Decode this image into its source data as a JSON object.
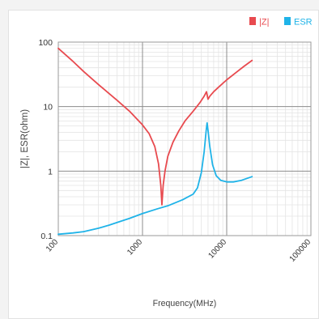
{
  "chart_data": {
    "type": "line",
    "x_scale": "log",
    "y_scale": "log",
    "xlabel": "Frequency(MHz)",
    "ylabel": "|Z|, ESR(ohm)",
    "xlim": [
      100,
      100000
    ],
    "ylim": [
      0.1,
      100
    ],
    "x_ticks": [
      "100",
      "1000",
      "10000",
      "100000"
    ],
    "y_ticks": [
      "0.1",
      "1",
      "10",
      "100"
    ],
    "grid": true,
    "legend_position": "top-right",
    "series": [
      {
        "name": "|Z|",
        "color": "#e84a4f",
        "points": [
          [
            100,
            80
          ],
          [
            150,
            50
          ],
          [
            200,
            35
          ],
          [
            300,
            22
          ],
          [
            400,
            16
          ],
          [
            500,
            12.5
          ],
          [
            700,
            8.5
          ],
          [
            1000,
            5.2
          ],
          [
            1200,
            3.8
          ],
          [
            1400,
            2.4
          ],
          [
            1550,
            1.3
          ],
          [
            1650,
            0.6
          ],
          [
            1700,
            0.3
          ],
          [
            1760,
            0.6
          ],
          [
            1850,
            1.0
          ],
          [
            2000,
            1.7
          ],
          [
            2300,
            2.8
          ],
          [
            2700,
            4.2
          ],
          [
            3200,
            6.0
          ],
          [
            4000,
            8.5
          ],
          [
            4800,
            11.5
          ],
          [
            5400,
            14.5
          ],
          [
            5750,
            17.0
          ],
          [
            6000,
            13.0
          ],
          [
            6300,
            14.5
          ],
          [
            7000,
            17.0
          ],
          [
            8000,
            20.0
          ],
          [
            10000,
            26.0
          ],
          [
            13000,
            34.0
          ],
          [
            16000,
            42.0
          ],
          [
            20000,
            52.0
          ]
        ]
      },
      {
        "name": "ESR",
        "color": "#1fb3e8",
        "points": [
          [
            100,
            0.105
          ],
          [
            150,
            0.11
          ],
          [
            200,
            0.115
          ],
          [
            300,
            0.13
          ],
          [
            400,
            0.145
          ],
          [
            500,
            0.16
          ],
          [
            700,
            0.185
          ],
          [
            1000,
            0.22
          ],
          [
            1500,
            0.26
          ],
          [
            2000,
            0.29
          ],
          [
            3000,
            0.36
          ],
          [
            4000,
            0.44
          ],
          [
            4500,
            0.55
          ],
          [
            5000,
            0.95
          ],
          [
            5400,
            2.0
          ],
          [
            5700,
            4.2
          ],
          [
            5850,
            5.6
          ],
          [
            6000,
            4.3
          ],
          [
            6300,
            2.4
          ],
          [
            6800,
            1.25
          ],
          [
            7500,
            0.85
          ],
          [
            8500,
            0.72
          ],
          [
            10000,
            0.68
          ],
          [
            12000,
            0.68
          ],
          [
            15000,
            0.72
          ],
          [
            20000,
            0.82
          ]
        ]
      }
    ]
  }
}
